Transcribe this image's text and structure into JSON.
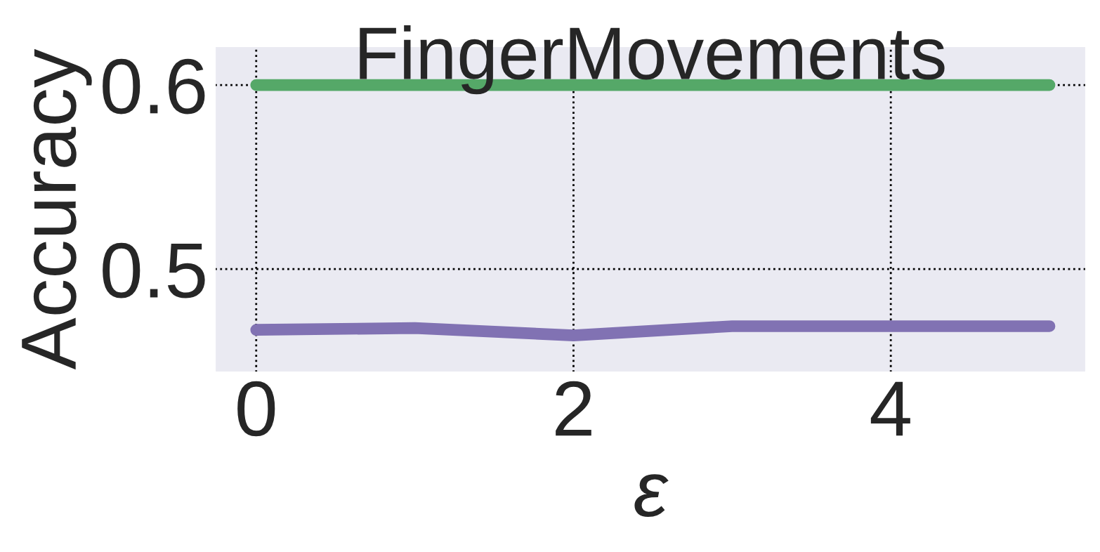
{
  "chart_data": {
    "type": "line",
    "title": "FingerMovements",
    "xlabel": "ε",
    "ylabel": "Accuracy",
    "x": [
      0,
      1,
      2,
      3,
      4,
      5
    ],
    "series": [
      {
        "color": "#55a868",
        "values": [
          0.6,
          0.6,
          0.6,
          0.6,
          0.6,
          0.6
        ]
      },
      {
        "color": "#8172b3",
        "values": [
          0.467,
          0.468,
          0.464,
          0.469,
          0.469,
          0.469
        ]
      }
    ],
    "xlim": [
      -0.26,
      5.23
    ],
    "ylim": [
      0.444,
      0.621
    ],
    "xticks": [
      0,
      2,
      4
    ],
    "yticks": [
      0.5,
      0.6
    ],
    "grid": true,
    "line_style": "solid",
    "marker": "none"
  }
}
